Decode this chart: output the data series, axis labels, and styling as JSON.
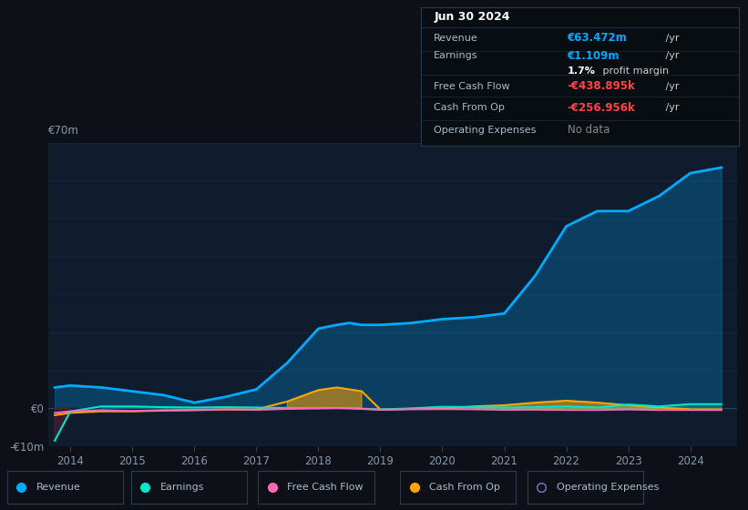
{
  "background_color": "#0d1117",
  "plot_bg_color": "#0e1c2e",
  "grid_color": "#1e3050",
  "title_box": {
    "date": "Jun 30 2024",
    "revenue_label": "Revenue",
    "revenue_val": "€63.472m",
    "revenue_suffix": " /yr",
    "earnings_label": "Earnings",
    "earnings_val": "€1.109m",
    "earnings_suffix": " /yr",
    "profit_margin": "1.7%",
    "profit_margin_suffix": " profit margin",
    "fcf_label": "Free Cash Flow",
    "fcf_val": "-€438.895k",
    "fcf_suffix": " /yr",
    "cfop_label": "Cash From Op",
    "cfop_val": "-€256.956k",
    "cfop_suffix": " /yr",
    "opex_label": "Operating Expenses",
    "opex_val": "No data"
  },
  "years": [
    2013.75,
    2014.0,
    2014.5,
    2015.0,
    2015.5,
    2016.0,
    2016.5,
    2017.0,
    2017.5,
    2018.0,
    2018.3,
    2018.5,
    2018.7,
    2019.0,
    2019.5,
    2020.0,
    2020.5,
    2021.0,
    2021.5,
    2022.0,
    2022.5,
    2023.0,
    2023.5,
    2024.0,
    2024.5
  ],
  "revenue": [
    5.5,
    6.0,
    5.5,
    4.5,
    3.5,
    1.5,
    3.0,
    5.0,
    12.0,
    21.0,
    22.0,
    22.5,
    22.0,
    22.0,
    22.5,
    23.5,
    24.0,
    25.0,
    35.0,
    48.0,
    52.0,
    52.0,
    56.0,
    62.0,
    63.472
  ],
  "earnings": [
    -8.5,
    -0.8,
    0.5,
    0.5,
    0.3,
    0.2,
    0.3,
    0.2,
    0.1,
    0.05,
    0.1,
    0.05,
    -0.1,
    -0.3,
    0.0,
    0.4,
    0.3,
    0.2,
    0.3,
    0.5,
    0.2,
    1.0,
    0.5,
    1.109,
    1.109
  ],
  "free_cash_flow": [
    -1.2,
    -0.8,
    -0.5,
    -0.7,
    -0.5,
    -0.4,
    -0.3,
    -0.4,
    -0.15,
    0.0,
    0.05,
    0.0,
    -0.15,
    -0.4,
    -0.25,
    -0.2,
    -0.25,
    -0.4,
    -0.35,
    -0.438,
    -0.45,
    -0.3,
    -0.438,
    -0.438,
    -0.438
  ],
  "cash_from_op": [
    -1.8,
    -1.2,
    -0.8,
    -0.8,
    -0.6,
    -0.5,
    -0.3,
    -0.3,
    1.8,
    4.8,
    5.5,
    5.0,
    4.5,
    -0.3,
    -0.15,
    -0.05,
    0.5,
    0.8,
    1.5,
    2.0,
    1.5,
    0.8,
    0.2,
    -0.256,
    -0.256
  ],
  "ylim": [
    -10,
    70
  ],
  "xlim": [
    2013.65,
    2024.75
  ],
  "xticks": [
    2014,
    2015,
    2016,
    2017,
    2018,
    2019,
    2020,
    2021,
    2022,
    2023,
    2024
  ],
  "ytick_labels": [
    "-€10m",
    "€0",
    "€70m"
  ],
  "revenue_color": "#00aaff",
  "revenue_fill_color": "#00aaff",
  "earnings_color": "#00e5cc",
  "fcf_color": "#ff69b4",
  "cashop_color": "#ffa500",
  "opex_color": "#8877cc",
  "legend_items": [
    {
      "label": "Revenue",
      "color": "#00aaff",
      "open": false
    },
    {
      "label": "Earnings",
      "color": "#00e5cc",
      "open": false
    },
    {
      "label": "Free Cash Flow",
      "color": "#ff69b4",
      "open": false
    },
    {
      "label": "Cash From Op",
      "color": "#ffa500",
      "open": false
    },
    {
      "label": "Operating Expenses",
      "color": "#8877cc",
      "open": true
    }
  ]
}
